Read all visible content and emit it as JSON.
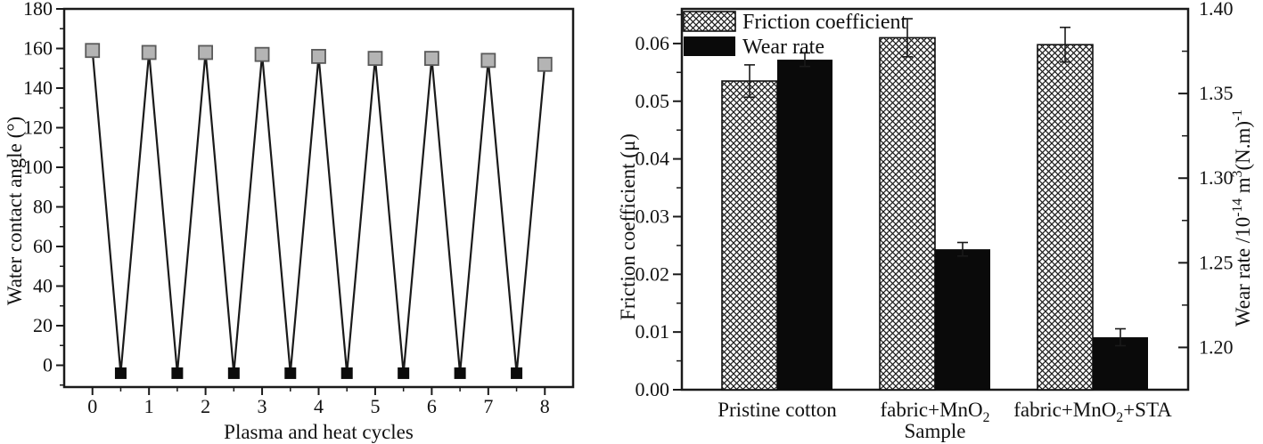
{
  "page": {
    "background": "#ffffff",
    "ink": "#1a1a1a"
  },
  "chart_data": [
    {
      "type": "line",
      "name": "water-contact-angle-vs-cycles",
      "title": "",
      "xlabel": "Plasma and heat cycles",
      "ylabel_segments": [
        [
          "t",
          "Water contact angle (°)"
        ]
      ],
      "xlim": [
        -0.5,
        8.5
      ],
      "ylim": [
        -11,
        180
      ],
      "grid": false,
      "x_ticks": [
        {
          "v": 0,
          "label": "0"
        },
        {
          "v": 1,
          "label": "1"
        },
        {
          "v": 2,
          "label": "2"
        },
        {
          "v": 3,
          "label": "3"
        },
        {
          "v": 4,
          "label": "4"
        },
        {
          "v": 5,
          "label": "5"
        },
        {
          "v": 6,
          "label": "6"
        },
        {
          "v": 7,
          "label": "7"
        },
        {
          "v": 8,
          "label": "8"
        }
      ],
      "x_minor_ticks": [
        0.5,
        1.5,
        2.5,
        3.5,
        4.5,
        5.5,
        6.5,
        7.5
      ],
      "y_ticks": [
        {
          "v": 0,
          "label": "0"
        },
        {
          "v": 20,
          "label": "20"
        },
        {
          "v": 40,
          "label": "40"
        },
        {
          "v": 60,
          "label": "60"
        },
        {
          "v": 80,
          "label": "80"
        },
        {
          "v": 100,
          "label": "100"
        },
        {
          "v": 120,
          "label": "120"
        },
        {
          "v": 140,
          "label": "140"
        },
        {
          "v": 160,
          "label": "160"
        },
        {
          "v": 180,
          "label": "180"
        }
      ],
      "y_minor_ticks": [
        -10,
        10,
        30,
        50,
        70,
        90,
        110,
        130,
        150,
        170
      ],
      "line_color": "#1a1a1a",
      "series": [
        {
          "name": "after-plasma-treatment",
          "marker": "gray-square",
          "marker_fill": "#b4b4b4",
          "marker_stroke": "#5a5a5a",
          "x": [
            0,
            1,
            2,
            3,
            4,
            5,
            6,
            7,
            8
          ],
          "y": [
            159,
            158,
            158,
            157,
            156,
            155,
            155,
            154,
            152
          ]
        },
        {
          "name": "after-heating",
          "marker": "black-square",
          "marker_fill": "#0b0b0b",
          "marker_stroke": "none",
          "x": [
            0.5,
            1.5,
            2.5,
            3.5,
            4.5,
            5.5,
            6.5,
            7.5
          ],
          "y": [
            -4,
            -4,
            -4,
            -4,
            -4,
            -4,
            -4,
            -4
          ]
        }
      ]
    },
    {
      "type": "bar",
      "name": "friction-and-wear-by-sample",
      "title": "",
      "xlabel": "Sample",
      "categories": [
        {
          "segments": [
            [
              "t",
              "Pristine cotton"
            ]
          ]
        },
        {
          "segments": [
            [
              "t",
              "fabric+MnO"
            ],
            [
              "sub",
              "2"
            ]
          ]
        },
        {
          "segments": [
            [
              "t",
              "fabric+MnO"
            ],
            [
              "sub",
              "2"
            ],
            [
              "t",
              "+STA"
            ]
          ]
        }
      ],
      "left_axis": {
        "label_segments": [
          [
            "t",
            "Friction coefficient (μ)"
          ]
        ],
        "lim": [
          0,
          0.066
        ],
        "ticks": [
          {
            "v": 0.0,
            "label": "0.00"
          },
          {
            "v": 0.01,
            "label": "0.01"
          },
          {
            "v": 0.02,
            "label": "0.02"
          },
          {
            "v": 0.03,
            "label": "0.03"
          },
          {
            "v": 0.04,
            "label": "0.04"
          },
          {
            "v": 0.05,
            "label": "0.05"
          },
          {
            "v": 0.06,
            "label": "0.06"
          }
        ],
        "minor_ticks": [
          0.005,
          0.015,
          0.025,
          0.035,
          0.045,
          0.055,
          0.065
        ]
      },
      "right_axis": {
        "label_segments": [
          [
            "t",
            "Wear rate /10"
          ],
          [
            "sup",
            "-14"
          ],
          [
            "t",
            " m"
          ],
          [
            "sup",
            "3"
          ],
          [
            "t",
            "(N.m)"
          ],
          [
            "sup",
            "-1"
          ]
        ],
        "lim": [
          1.175,
          1.4
        ],
        "ticks": [
          {
            "v": 1.2,
            "label": "1.20"
          },
          {
            "v": 1.25,
            "label": "1.25"
          },
          {
            "v": 1.3,
            "label": "1.30"
          },
          {
            "v": 1.35,
            "label": "1.35"
          },
          {
            "v": 1.4,
            "label": "1.40"
          }
        ],
        "minor_ticks": [
          1.225,
          1.275,
          1.325,
          1.375
        ]
      },
      "series": [
        {
          "name": "Friction coefficient",
          "axis": "left",
          "style": "crosshatch",
          "values": [
            0.0535,
            0.061,
            0.0598
          ],
          "errors": [
            0.0028,
            0.0033,
            0.003
          ]
        },
        {
          "name": "Wear rate",
          "axis": "right",
          "style": "solid-black",
          "values": [
            1.37,
            1.258,
            1.206
          ],
          "errors": [
            0.004,
            0.004,
            0.005
          ]
        }
      ],
      "legend": {
        "position": "top-left",
        "entries": [
          {
            "label": "Friction coefficient",
            "style": "crosshatch"
          },
          {
            "label": "Wear rate",
            "style": "solid-black"
          }
        ]
      },
      "colors": {
        "ink": "#1a1a1a",
        "bar_black": "#0a0a0a"
      }
    }
  ]
}
